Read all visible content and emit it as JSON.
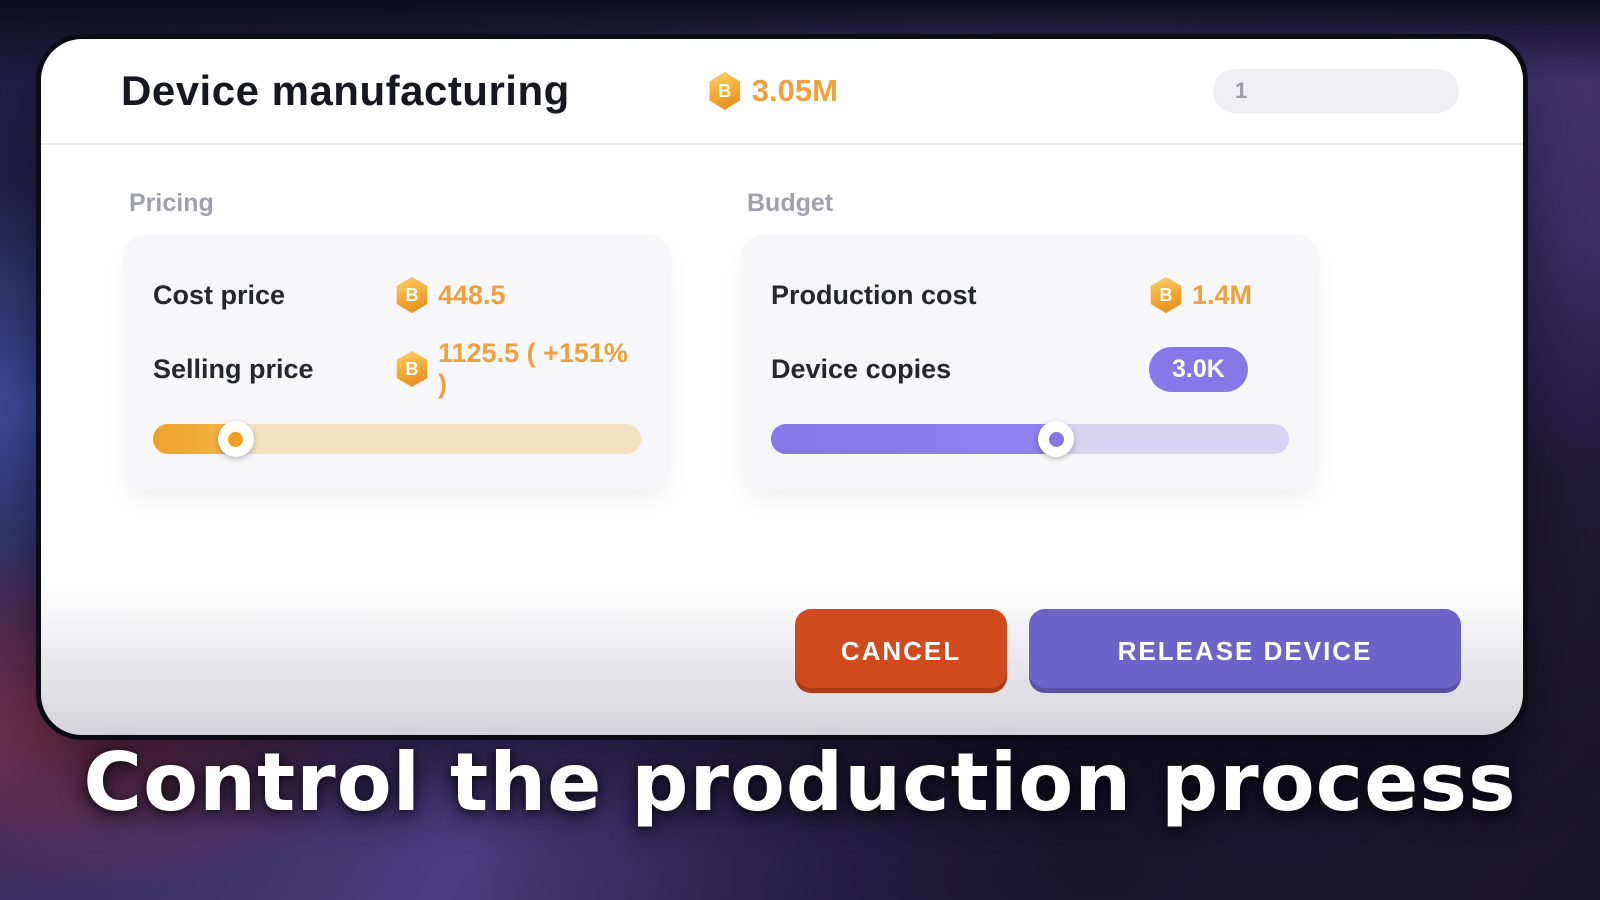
{
  "header": {
    "title": "Device manufacturing",
    "balance": "3.05M",
    "counter": "1"
  },
  "pricing": {
    "section_label": "Pricing",
    "cost_price": {
      "label": "Cost price",
      "value": "448.5"
    },
    "selling_price": {
      "label": "Selling price",
      "value": "1125.5 ( +151% )"
    },
    "slider": {
      "percent": 20
    }
  },
  "budget": {
    "section_label": "Budget",
    "production_cost": {
      "label": "Production cost",
      "value": "1.4M"
    },
    "device_copies": {
      "label": "Device copies",
      "value": "3.0K"
    },
    "slider": {
      "percent": 58
    }
  },
  "actions": {
    "cancel": "CANCEL",
    "release": "RELEASE DEVICE"
  },
  "caption": "Control the production process",
  "icons": {
    "coin": "coin-icon"
  },
  "colors": {
    "gold_accent": "#F0A03A",
    "purple_accent": "#8678E8",
    "cancel_button": "#D04A1E",
    "release_button": "#6E63C8",
    "orange_slider_fill": "#EEA227",
    "orange_slider_track": "#F2E2C0",
    "purple_slider_fill": "#8577E6",
    "purple_slider_track": "#D8D3F1"
  }
}
